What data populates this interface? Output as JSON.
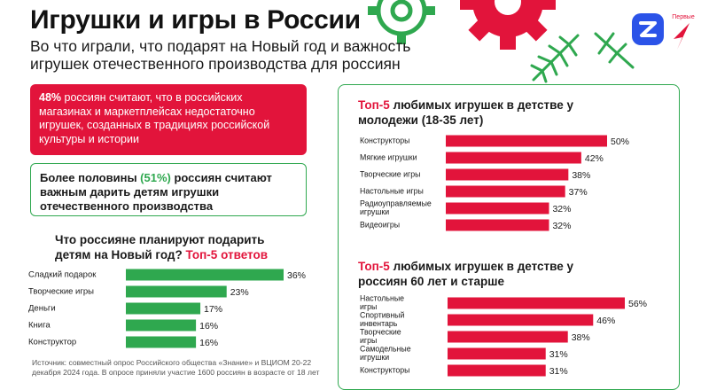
{
  "header": {
    "title": "Игрушки и игры в России",
    "subtitle": "Во что играли, что подарят на Новый год и важность игрушек отечественного производства для россиян",
    "logo_right_text": "Первые"
  },
  "facts": {
    "red_pct": "48%",
    "red_text": " россиян считают, что в российских магазинах и маркетплейсах недостаточно игрушек, созданных в традициях российской культуры и истории",
    "green_text_1": "Более половины ",
    "green_pct": "(51%)",
    "green_text_2": " россиян считают важным дарить детям игрушки отечественного производства"
  },
  "source": "Источник: совместный опрос Российского общества «Знание» и ВЦИОМ 20-22 декабря 2024 года. В опросе приняли участие 1600 россиян в возрасте от 18 лет",
  "charts_text": {
    "gift_title_1": "Что россияне планируют подарить детям на Новый год?",
    "gift_title_2": "Топ-5 ответов",
    "young_title_1": "Топ-5",
    "young_title_2": " любимых игрушек в детстве у молодежи (18-35 лет)",
    "old_title_1": "Топ-5",
    "old_title_2": " любимых игрушек в детстве у россиян 60 лет и старше"
  },
  "colors": {
    "green": "#2fa84f",
    "red": "#e2143b",
    "blue": "#2b53e8"
  },
  "chart_data": [
    {
      "type": "bar",
      "orientation": "horizontal",
      "title": "Что россияне планируют подарить детям на Новый год? Топ-5 ответов",
      "categories": [
        "Сладкий подарок",
        "Творческие игры",
        "Деньги",
        "Книга",
        "Конструктор"
      ],
      "values": [
        36,
        23,
        17,
        16,
        16
      ],
      "value_suffix": "%",
      "color": "#2fa84f"
    },
    {
      "type": "bar",
      "orientation": "horizontal",
      "title": "Топ-5 любимых игрушек в детстве у молодежи (18-35 лет)",
      "categories": [
        "Конструкторы",
        "Мягкие игрушки",
        "Творческие игры",
        "Настольные игры",
        "Радиоуправляемые игрушки",
        "Видеоигры"
      ],
      "values": [
        50,
        42,
        38,
        37,
        32,
        32
      ],
      "value_suffix": "%",
      "color": "#e2143b"
    },
    {
      "type": "bar",
      "orientation": "horizontal",
      "title": "Топ-5 любимых игрушек в детстве у россиян 60 лет и старше",
      "categories": [
        "Настольные игры",
        "Спортивный инвентарь",
        "Творческие игры",
        "Самодельные игрушки",
        "Конструкторы"
      ],
      "values": [
        56,
        46,
        38,
        31,
        31
      ],
      "value_suffix": "%",
      "color": "#e2143b"
    }
  ]
}
